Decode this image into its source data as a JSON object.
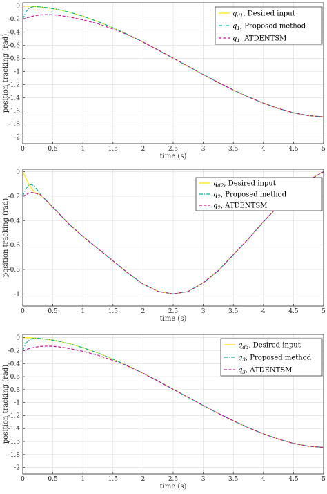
{
  "chart_data": [
    {
      "type": "line",
      "xlabel": "time (s)",
      "ylabel": "position tracking (rad)",
      "xlim": [
        0,
        5
      ],
      "ylim": [
        -2.1,
        0.05
      ],
      "xticks": [
        0,
        0.5,
        1,
        1.5,
        2,
        2.5,
        3,
        3.5,
        4,
        4.5,
        5
      ],
      "xtick_labels": [
        "0",
        "0.5",
        "1",
        "1.5",
        "2",
        "2.5",
        "3",
        "3.5",
        "4",
        "4.5",
        "5"
      ],
      "yticks": [
        0,
        -0.2,
        -0.4,
        -0.6,
        -0.8,
        -1,
        -1.2,
        -1.4,
        -1.6,
        -1.8,
        -2
      ],
      "ytick_labels": [
        "0",
        "-0.2",
        "-0.4",
        "-0.6",
        "-0.8",
        "-1",
        "-1.2",
        "-1.4",
        "-1.6",
        "-1.8",
        "-2"
      ],
      "grid": true,
      "legend_position": "top-right",
      "legend": [
        {
          "symbol": "q",
          "sub": "d1",
          "label": ", Desired input"
        },
        {
          "symbol": "q",
          "sub": "1",
          "label": ", Proposed method"
        },
        {
          "symbol": "q",
          "sub": "1",
          "label": ", ATDENTSM"
        }
      ],
      "x": [
        0,
        0.05,
        0.1,
        0.15,
        0.2,
        0.3,
        0.4,
        0.5,
        0.6,
        0.8,
        1.0,
        1.25,
        1.5,
        1.75,
        2.0,
        2.25,
        2.5,
        2.75,
        3.0,
        3.25,
        3.5,
        3.75,
        4.0,
        4.25,
        4.5,
        4.75,
        5.0
      ],
      "series": [
        {
          "values": [
            0,
            -0.0004,
            -0.0016,
            -0.0035,
            -0.0063,
            -0.014,
            -0.025,
            -0.039,
            -0.056,
            -0.099,
            -0.154,
            -0.236,
            -0.331,
            -0.436,
            -0.549,
            -0.67,
            -0.795,
            -0.92,
            -1.045,
            -1.166,
            -1.281,
            -1.387,
            -1.482,
            -1.563,
            -1.629,
            -1.673,
            -1.69
          ],
          "color": "#ffe600",
          "dash": "solid"
        },
        {
          "values": [
            -0.2,
            -0.09,
            -0.04,
            -0.015,
            -0.006,
            -0.013,
            -0.024,
            -0.038,
            -0.055,
            -0.099,
            -0.154,
            -0.236,
            -0.331,
            -0.436,
            -0.549,
            -0.67,
            -0.795,
            -0.92,
            -1.045,
            -1.166,
            -1.281,
            -1.387,
            -1.482,
            -1.563,
            -1.629,
            -1.673,
            -1.69
          ],
          "color": "#00b89a",
          "dash": "dashdot"
        },
        {
          "values": [
            -0.2,
            -0.185,
            -0.17,
            -0.158,
            -0.147,
            -0.134,
            -0.13,
            -0.133,
            -0.141,
            -0.17,
            -0.21,
            -0.27,
            -0.35,
            -0.44,
            -0.549,
            -0.67,
            -0.795,
            -0.92,
            -1.045,
            -1.166,
            -1.281,
            -1.387,
            -1.482,
            -1.563,
            -1.629,
            -1.673,
            -1.69
          ],
          "color": "#c4149c",
          "dash": "dashed"
        }
      ]
    },
    {
      "type": "line",
      "xlabel": "time (s)",
      "ylabel": "position tracking (rad)",
      "xlim": [
        0,
        5
      ],
      "ylim": [
        -1.1,
        0.02
      ],
      "xticks": [
        0,
        0.5,
        1,
        1.5,
        2,
        2.5,
        3,
        3.5,
        4,
        4.5,
        5
      ],
      "xtick_labels": [
        "0",
        "0.5",
        "1",
        "1.5",
        "2",
        "2.5",
        "3",
        "3.5",
        "4",
        "4.5",
        "5"
      ],
      "yticks": [
        0,
        -0.2,
        -0.4,
        -0.6,
        -0.8,
        -1
      ],
      "ytick_labels": [
        "0",
        "-0.2",
        "-0.4",
        "-0.6",
        "-0.8",
        "-1"
      ],
      "grid": true,
      "legend_position": "top-right",
      "legend": [
        {
          "symbol": "q",
          "sub": "d2",
          "label": ", Desired input"
        },
        {
          "symbol": "q",
          "sub": "2",
          "label": ", Proposed method"
        },
        {
          "symbol": "q",
          "sub": "2",
          "label": ", ATDENTSM"
        }
      ],
      "x": [
        0,
        0.05,
        0.1,
        0.15,
        0.2,
        0.3,
        0.4,
        0.5,
        0.75,
        1.0,
        1.25,
        1.5,
        1.75,
        2.0,
        2.25,
        2.5,
        2.75,
        3.0,
        3.25,
        3.5,
        3.75,
        4.0,
        4.25,
        4.5,
        4.75,
        5.0
      ],
      "series": [
        {
          "values": [
            0,
            -0.05,
            -0.1,
            -0.14,
            -0.17,
            -0.19,
            -0.24,
            -0.29,
            -0.42,
            -0.53,
            -0.63,
            -0.73,
            -0.83,
            -0.92,
            -0.98,
            -1.0,
            -0.98,
            -0.91,
            -0.81,
            -0.68,
            -0.55,
            -0.41,
            -0.28,
            -0.16,
            -0.07,
            0.0
          ],
          "color": "#ffe600",
          "dash": "solid"
        },
        {
          "values": [
            -0.2,
            -0.14,
            -0.11,
            -0.105,
            -0.12,
            -0.19,
            -0.24,
            -0.29,
            -0.42,
            -0.53,
            -0.63,
            -0.73,
            -0.83,
            -0.92,
            -0.98,
            -1.0,
            -0.98,
            -0.91,
            -0.81,
            -0.68,
            -0.55,
            -0.41,
            -0.28,
            -0.16,
            -0.07,
            0.0
          ],
          "color": "#00b89a",
          "dash": "dashdot"
        },
        {
          "values": [
            -0.2,
            -0.19,
            -0.175,
            -0.17,
            -0.175,
            -0.19,
            -0.24,
            -0.29,
            -0.42,
            -0.53,
            -0.63,
            -0.73,
            -0.83,
            -0.92,
            -0.98,
            -1.0,
            -0.98,
            -0.91,
            -0.81,
            -0.68,
            -0.55,
            -0.41,
            -0.28,
            -0.16,
            -0.07,
            0.0
          ],
          "color": "#c4149c",
          "dash": "dashed"
        }
      ]
    },
    {
      "type": "line",
      "xlabel": "time (s)",
      "ylabel": "position tracking (rad)",
      "xlim": [
        0,
        5
      ],
      "ylim": [
        -2.1,
        0.05
      ],
      "xticks": [
        0,
        0.5,
        1,
        1.5,
        2,
        2.5,
        3,
        3.5,
        4,
        4.5,
        5
      ],
      "xtick_labels": [
        "0",
        "0.5",
        "1",
        "1.5",
        "2",
        "2.5",
        "3",
        "3.5",
        "4",
        "4.5",
        "5"
      ],
      "yticks": [
        0,
        -0.2,
        -0.4,
        -0.6,
        -0.8,
        -1,
        -1.2,
        -1.4,
        -1.6,
        -1.8,
        -2
      ],
      "ytick_labels": [
        "0",
        "-0.2",
        "-0.4",
        "-0.6",
        "-0.8",
        "-1",
        "-1.2",
        "-1.4",
        "-1.6",
        "-1.8",
        "-2"
      ],
      "grid": true,
      "legend_position": "top-right",
      "legend": [
        {
          "symbol": "q",
          "sub": "d3",
          "label": ", Desired input"
        },
        {
          "symbol": "q",
          "sub": "3",
          "label": ", Proposed method"
        },
        {
          "symbol": "q",
          "sub": "3",
          "label": ", ATDENTSM"
        }
      ],
      "x": [
        0,
        0.05,
        0.1,
        0.15,
        0.2,
        0.3,
        0.4,
        0.5,
        0.6,
        0.8,
        1.0,
        1.25,
        1.5,
        1.75,
        2.0,
        2.25,
        2.5,
        2.75,
        3.0,
        3.25,
        3.5,
        3.75,
        4.0,
        4.25,
        4.5,
        4.75,
        5.0
      ],
      "series": [
        {
          "values": [
            0,
            -0.0004,
            -0.0016,
            -0.0035,
            -0.0063,
            -0.014,
            -0.025,
            -0.039,
            -0.056,
            -0.099,
            -0.154,
            -0.236,
            -0.331,
            -0.436,
            -0.549,
            -0.67,
            -0.795,
            -0.92,
            -1.045,
            -1.166,
            -1.281,
            -1.387,
            -1.482,
            -1.563,
            -1.629,
            -1.673,
            -1.69
          ],
          "color": "#ffe600",
          "dash": "solid"
        },
        {
          "values": [
            -0.2,
            -0.09,
            -0.04,
            -0.015,
            -0.006,
            -0.013,
            -0.024,
            -0.038,
            -0.055,
            -0.099,
            -0.154,
            -0.236,
            -0.331,
            -0.436,
            -0.549,
            -0.67,
            -0.795,
            -0.92,
            -1.045,
            -1.166,
            -1.281,
            -1.387,
            -1.482,
            -1.563,
            -1.629,
            -1.673,
            -1.69
          ],
          "color": "#00b89a",
          "dash": "dashdot"
        },
        {
          "values": [
            -0.2,
            -0.185,
            -0.17,
            -0.158,
            -0.147,
            -0.134,
            -0.13,
            -0.133,
            -0.141,
            -0.17,
            -0.21,
            -0.27,
            -0.35,
            -0.44,
            -0.549,
            -0.67,
            -0.795,
            -0.92,
            -1.045,
            -1.166,
            -1.281,
            -1.387,
            -1.482,
            -1.563,
            -1.629,
            -1.673,
            -1.69
          ],
          "color": "#c4149c",
          "dash": "dashed"
        }
      ]
    }
  ]
}
